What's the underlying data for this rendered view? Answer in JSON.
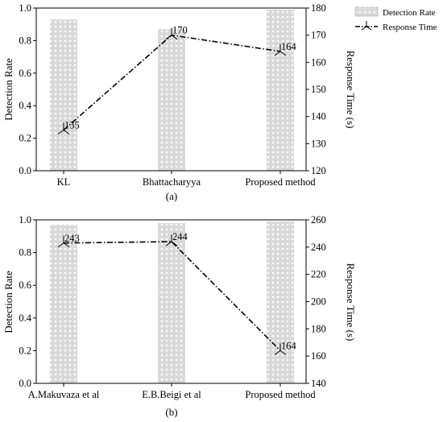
{
  "legend": {
    "bar_label": "Detection Rate",
    "line_label": "Response Time"
  },
  "colors": {
    "bar_fill": "#d9d9d9",
    "bar_pattern": "#ffffff",
    "line": "#000000"
  },
  "chart_data": [
    {
      "type": "bar",
      "panel_label": "(a)",
      "categories": [
        "KL",
        "Bhattacharyya",
        "Proposed method"
      ],
      "series": [
        {
          "name": "Detection Rate",
          "axis": "left",
          "values": [
            0.93,
            0.87,
            0.99
          ]
        },
        {
          "name": "Response Time",
          "axis": "right",
          "type": "line",
          "values": [
            135,
            170,
            164
          ]
        }
      ],
      "data_labels": [
        "135",
        "170",
        "164"
      ],
      "ylabel": "Detection Rate",
      "ylim": [
        0,
        1.0
      ],
      "yticks": [
        "0.0",
        "0.2",
        "0.4",
        "0.6",
        "0.8",
        "1.0"
      ],
      "y2label": "Response Time (s)",
      "y2lim": [
        120,
        180
      ],
      "y2ticks": [
        "120",
        "130",
        "140",
        "150",
        "160",
        "170",
        "180"
      ],
      "legend_position": "outside top-right"
    },
    {
      "type": "bar",
      "panel_label": "(b)",
      "categories": [
        "A.Makuvaza et al",
        "E.B.Beigi et al",
        "Proposed method"
      ],
      "series": [
        {
          "name": "Detection Rate",
          "axis": "left",
          "values": [
            0.97,
            0.98,
            0.99
          ]
        },
        {
          "name": "Response Time",
          "axis": "right",
          "type": "line",
          "values": [
            243,
            244,
            164
          ]
        }
      ],
      "data_labels": [
        "243",
        "244",
        "164"
      ],
      "ylabel": "Detection Rate",
      "ylim": [
        0,
        1.0
      ],
      "yticks": [
        "0.0",
        "0.2",
        "0.4",
        "0.6",
        "0.8",
        "1.0"
      ],
      "y2label": "Response Time (s)",
      "y2lim": [
        140,
        260
      ],
      "y2ticks": [
        "140",
        "160",
        "180",
        "200",
        "220",
        "240",
        "260"
      ]
    }
  ]
}
